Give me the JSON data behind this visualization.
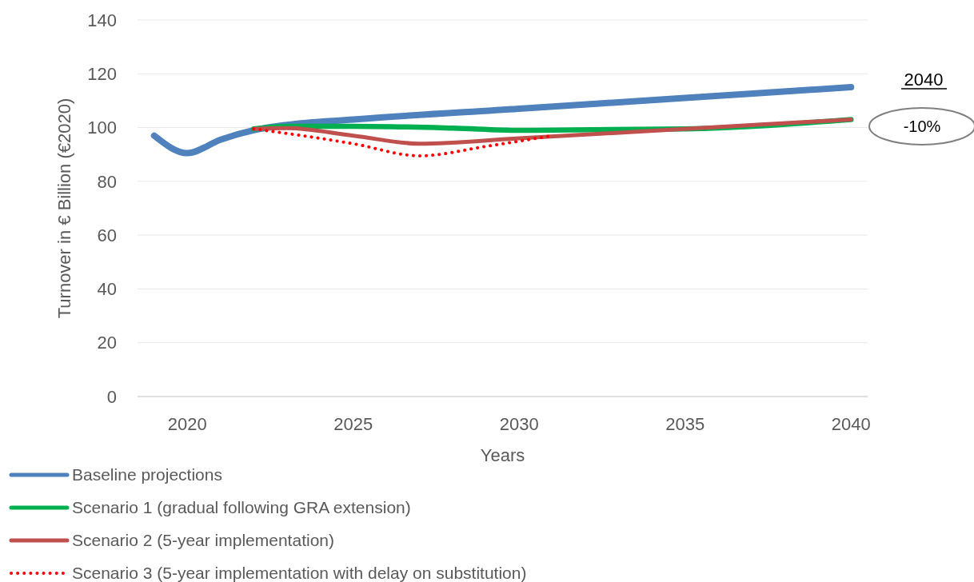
{
  "chart_data": {
    "type": "line",
    "xlabel": "Years",
    "ylabel": "Turnover in € Billion (€2020)",
    "xlim": [
      2018.5,
      2040.5
    ],
    "xticks": [
      2020,
      2025,
      2030,
      2035,
      2040
    ],
    "ylim": [
      0,
      140
    ],
    "yticks": [
      0,
      20,
      40,
      60,
      80,
      100,
      120,
      140
    ],
    "grid": "y",
    "legend": "bottom",
    "marker": "none",
    "series": [
      {
        "name": "Baseline projections",
        "color": "#4f81bd",
        "line_style": "solid",
        "x": [
          2019,
          2020,
          2021,
          2022,
          2023,
          2025,
          2030,
          2035,
          2040
        ],
        "values": [
          97,
          90.5,
          95.5,
          99,
          101,
          103,
          107,
          111,
          115
        ]
      },
      {
        "name": "Scenario 1 (gradual following GRA extension)",
        "color": "#00b050",
        "line_style": "solid",
        "x": [
          2022,
          2023,
          2025,
          2028,
          2030,
          2035,
          2040
        ],
        "values": [
          99.5,
          100.5,
          100.5,
          99.8,
          99,
          99.5,
          103
        ]
      },
      {
        "name": "Scenario 2 (5-year implementation)",
        "color": "#c0504d",
        "line_style": "solid",
        "x": [
          2022,
          2023,
          2025,
          2027,
          2030,
          2035,
          2040
        ],
        "values": [
          99.5,
          99.8,
          97,
          94,
          96,
          99.5,
          103
        ]
      },
      {
        "name": "Scenario 3 (5-year implementation with delay on substitution)",
        "color": "#ff0000",
        "line_style": "dotted",
        "x": [
          2022,
          2024,
          2025,
          2027,
          2029,
          2031
        ],
        "values": [
          99.5,
          96,
          94,
          89.5,
          93,
          97
        ]
      }
    ],
    "annotations": [
      "2040",
      "-10%"
    ]
  }
}
